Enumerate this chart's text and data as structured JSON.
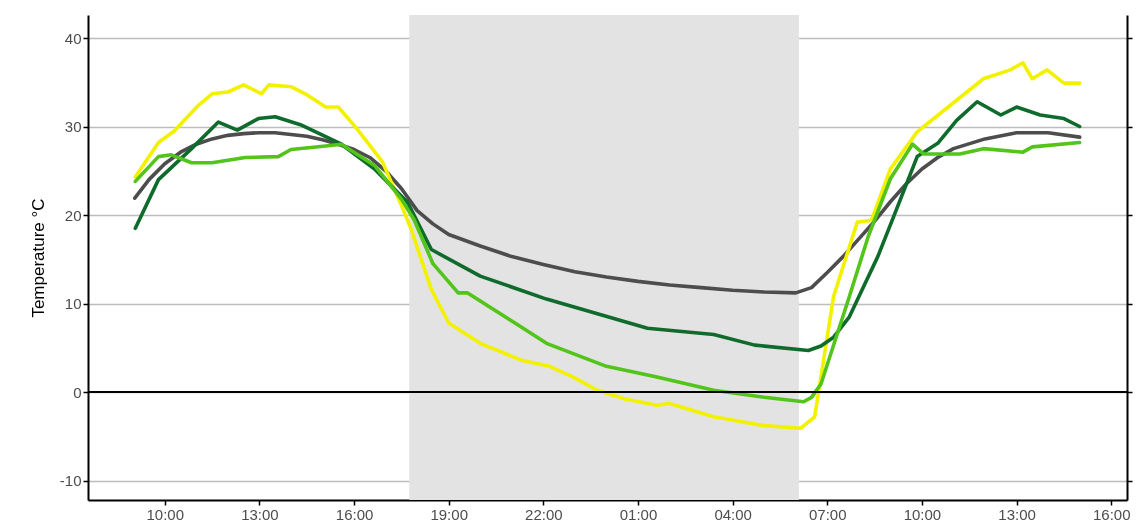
{
  "chart_data": {
    "type": "line",
    "ylabel": "Temperature °C",
    "xlim": [
      "--06-01T07:34",
      "--06-02T16:30"
    ],
    "ylim": [
      -12.2,
      42.6
    ],
    "xticks": [
      {
        "value": "--06-01T10:00",
        "label": "10:00"
      },
      {
        "value": "--06-01T13:00",
        "label": "13:00"
      },
      {
        "value": "--06-01T16:00",
        "label": "16:00"
      },
      {
        "value": "--06-01T19:00",
        "label": "19:00"
      },
      {
        "value": "--06-01T22:00",
        "label": "22:00"
      },
      {
        "value": "--06-02T01:00",
        "label": "01:00"
      },
      {
        "value": "--06-02T04:00",
        "label": "04:00"
      },
      {
        "value": "--06-02T07:00",
        "label": "07:00"
      },
      {
        "value": "--06-02T10:00",
        "label": "10:00"
      },
      {
        "value": "--06-02T13:00",
        "label": "13:00"
      },
      {
        "value": "--06-02T16:00",
        "label": "16:00"
      }
    ],
    "yticks": [
      -10,
      0,
      10,
      20,
      30,
      40
    ],
    "grid": "y",
    "line_style": "solid",
    "marker": "none",
    "ref_lines": [
      {
        "axis": "y",
        "value": 0,
        "color": "#000000"
      }
    ],
    "bands": [
      {
        "axis": "x",
        "from": "--06-01T17:45",
        "to": "--06-02T06:06",
        "color": "#e3e3e3"
      }
    ],
    "series": [
      {
        "color": "#4d4d4d",
        "x": [
          "--06-01T09:03",
          "--06-01T09:30",
          "--06-01T10:00",
          "--06-01T10:30",
          "--06-01T11:00",
          "--06-01T11:30",
          "--06-01T12:00",
          "--06-01T12:30",
          "--06-01T13:00",
          "--06-01T13:30",
          "--06-01T14:00",
          "--06-01T14:30",
          "--06-01T15:00",
          "--06-01T15:30",
          "--06-01T16:00",
          "--06-01T16:30",
          "--06-01T17:00",
          "--06-01T17:30",
          "--06-01T18:00",
          "--06-01T18:30",
          "--06-01T19:00",
          "--06-01T20:00",
          "--06-01T21:00",
          "--06-01T22:00",
          "--06-01T23:00",
          "--06-02T00:00",
          "--06-02T01:00",
          "--06-02T02:00",
          "--06-02T03:00",
          "--06-02T04:00",
          "--06-02T05:00",
          "--06-02T06:00",
          "--06-02T06:30",
          "--06-02T07:00",
          "--06-02T07:30",
          "--06-02T08:00",
          "--06-02T08:30",
          "--06-02T09:00",
          "--06-02T09:30",
          "--06-02T10:00",
          "--06-02T10:30",
          "--06-02T11:00",
          "--06-02T12:00",
          "--06-02T13:00",
          "--06-02T14:00",
          "--06-02T15:00"
        ],
        "values": [
          21.9,
          24,
          25.8,
          27.1,
          28,
          28.6,
          29,
          29.2,
          29.3,
          29.3,
          29.1,
          28.9,
          28.5,
          28,
          27.4,
          26.5,
          25,
          23,
          20.5,
          19,
          17.8,
          16.5,
          15.3,
          14.4,
          13.6,
          13,
          12.5,
          12.1,
          11.8,
          11.5,
          11.3,
          11.2,
          11.8,
          13.5,
          15.3,
          17.3,
          19.3,
          21.5,
          23.5,
          25.2,
          26.5,
          27.5,
          28.6,
          29.3,
          29.3,
          28.8
        ]
      },
      {
        "color": "#f2f200",
        "x": [
          "--06-01T09:04",
          "--06-01T09:48",
          "--06-01T10:18",
          "--06-01T11:04",
          "--06-01T11:30",
          "--06-01T12:00",
          "--06-01T12:30",
          "--06-01T13:04",
          "--06-01T13:18",
          "--06-01T14:00",
          "--06-01T14:30",
          "--06-01T15:06",
          "--06-01T15:30",
          "--06-01T16:06",
          "--06-01T16:54",
          "--06-01T17:30",
          "--06-01T17:48",
          "--06-01T18:27",
          "--06-01T19:00",
          "--06-01T20:00",
          "--06-01T21:18",
          "--06-01T22:12",
          "--06-01T23:00",
          "--06-01T23:42",
          "--06-02T00:36",
          "--06-02T01:36",
          "--06-02T02:00",
          "--06-02T03:24",
          "--06-02T05:00",
          "--06-02T06:09",
          "--06-02T06:36",
          "--06-02T07:12",
          "--06-02T07:57",
          "--06-02T08:24",
          "--06-02T09:00",
          "--06-02T09:51",
          "--06-02T10:54",
          "--06-02T11:57",
          "--06-02T12:48",
          "--06-02T13:12",
          "--06-02T13:30",
          "--06-02T13:58",
          "--06-02T14:30",
          "--06-02T15:00"
        ],
        "values": [
          24.3,
          28.2,
          29.5,
          32.4,
          33.7,
          33.9,
          34.7,
          33.7,
          34.7,
          34.5,
          33.6,
          32.2,
          32.2,
          29.7,
          26,
          21.1,
          18.5,
          11.6,
          7.8,
          5.5,
          3.6,
          2.9,
          1.6,
          0.2,
          -0.8,
          -1.5,
          -1.3,
          -2.8,
          -3.8,
          -4.1,
          -2.8,
          10.8,
          19.2,
          19.4,
          25.2,
          29.4,
          32.4,
          35.4,
          36.4,
          37.2,
          35.4,
          36.4,
          34.9,
          34.9
        ]
      },
      {
        "color": "#0f6b2c",
        "x": [
          "--06-01T09:04",
          "--06-01T09:48",
          "--06-01T10:51",
          "--06-01T11:42",
          "--06-01T12:18",
          "--06-01T12:58",
          "--06-01T13:30",
          "--06-01T14:18",
          "--06-01T15:36",
          "--06-01T16:39",
          "--06-01T17:42",
          "--06-01T18:27",
          "--06-01T20:00",
          "--06-01T22:06",
          "--06-02T01:18",
          "--06-02T03:24",
          "--06-02T04:42",
          "--06-02T06:24",
          "--06-02T06:48",
          "--06-02T07:12",
          "--06-02T07:42",
          "--06-02T08:36",
          "--06-02T09:06",
          "--06-02T09:51",
          "--06-02T10:30",
          "--06-02T11:06",
          "--06-02T11:45",
          "--06-02T12:30",
          "--06-02T13:00",
          "--06-02T13:45",
          "--06-02T14:30",
          "--06-02T15:00"
        ],
        "values": [
          18.5,
          24,
          27.5,
          30.5,
          29.6,
          30.9,
          31.1,
          30.2,
          28,
          25.2,
          21.4,
          16.1,
          13.1,
          10.5,
          7.2,
          6.5,
          5.3,
          4.7,
          5.2,
          6.2,
          8.5,
          15.3,
          19.8,
          26.6,
          28.1,
          30.7,
          32.8,
          31.3,
          32.2,
          31.3,
          30.9,
          30
        ]
      },
      {
        "color": "#52c41a",
        "x": [
          "--06-01T09:04",
          "--06-01T09:48",
          "--06-01T10:12",
          "--06-01T10:51",
          "--06-01T11:30",
          "--06-01T12:33",
          "--06-01T13:36",
          "--06-01T14:00",
          "--06-01T15:06",
          "--06-01T15:36",
          "--06-01T16:39",
          "--06-01T17:30",
          "--06-01T17:54",
          "--06-01T18:30",
          "--06-01T19:18",
          "--06-01T19:36",
          "--06-01T21:06",
          "--06-01T22:06",
          "--06-02T00:00",
          "--06-02T01:36",
          "--06-02T03:24",
          "--06-02T05:00",
          "--06-02T06:15",
          "--06-02T06:30",
          "--06-02T06:48",
          "--06-02T07:42",
          "--06-02T08:18",
          "--06-02T09:00",
          "--06-02T09:42",
          "--06-02T10:03",
          "--06-02T11:12",
          "--06-02T11:57",
          "--06-02T13:12",
          "--06-02T13:30",
          "--06-02T15:00"
        ],
        "values": [
          23.8,
          26.6,
          26.8,
          25.9,
          25.9,
          26.5,
          26.6,
          27.4,
          27.8,
          28,
          25.6,
          21.8,
          19.5,
          14.5,
          11.2,
          11.2,
          7.8,
          5.5,
          2.9,
          1.7,
          0.2,
          -0.6,
          -1.1,
          -0.6,
          0.9,
          10.8,
          17.6,
          24.1,
          28,
          26.9,
          26.9,
          27.5,
          27.1,
          27.7,
          28.2
        ]
      }
    ]
  }
}
